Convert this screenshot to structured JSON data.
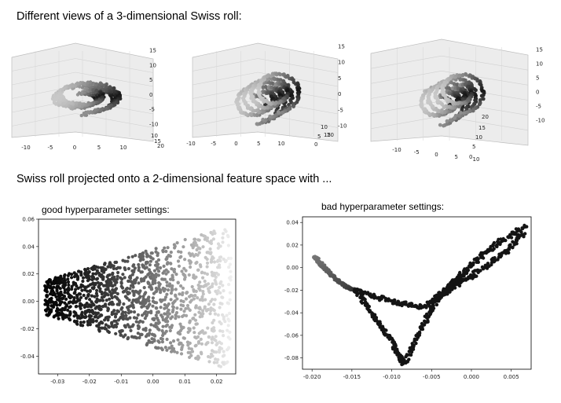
{
  "heading_3d": "Different views of a 3-dimensional Swiss roll:",
  "heading_2d": "Swiss roll projected onto a 2-dimensional feature space with ...",
  "chart_data": [
    {
      "type": "scatter",
      "title": "",
      "view": 1,
      "x_ticks": [
        "-10",
        "-5",
        "0",
        "5",
        "10"
      ],
      "y_ticks": [
        "10",
        "15",
        "20"
      ],
      "z_ticks": [
        "15",
        "10",
        "5",
        "0",
        "-5",
        "-10"
      ],
      "zlim": [
        -12,
        15
      ],
      "grid": true
    },
    {
      "type": "scatter",
      "title": "",
      "view": 2,
      "x_ticks": [
        "-10",
        "-5",
        "0",
        "5",
        "10"
      ],
      "y_ticks": [
        "0",
        "5",
        "10",
        "15",
        "20"
      ],
      "z_ticks": [
        "15",
        "10",
        "5",
        "0",
        "-5",
        "-10"
      ],
      "zlim": [
        -12,
        15
      ],
      "grid": true
    },
    {
      "type": "scatter",
      "title": "",
      "view": 3,
      "x_ticks": [
        "-10",
        "-5",
        "0",
        "5",
        "10"
      ],
      "y_ticks": [
        "0",
        "5",
        "10",
        "15",
        "20"
      ],
      "z_ticks": [
        "15",
        "10",
        "5",
        "0",
        "-5",
        "-10"
      ],
      "zlim": [
        -12,
        15
      ],
      "grid": true
    },
    {
      "type": "scatter",
      "title": "good hyperparameter settings:",
      "xlim": [
        -0.036,
        0.026
      ],
      "ylim": [
        -0.053,
        0.06
      ],
      "x_ticks": [
        "-0.03",
        "-0.02",
        "-0.01",
        "0.00",
        "0.01",
        "0.02"
      ],
      "y_ticks": [
        "0.06",
        "0.04",
        "0.02",
        "0.00",
        "-0.02",
        "-0.04"
      ],
      "x_tick_values": [
        -0.03,
        -0.02,
        -0.01,
        0.0,
        0.01,
        0.02
      ],
      "y_tick_values": [
        0.06,
        0.04,
        0.02,
        0.0,
        -0.02,
        -0.04
      ],
      "band": {
        "x_start": -0.034,
        "x_end": 0.0245,
        "left_top": 0.015,
        "left_bottom": -0.01,
        "right_top": 0.055,
        "right_bottom": -0.05
      }
    },
    {
      "type": "scatter",
      "title": "bad hyperparameter settings:",
      "xlim": [
        -0.0212,
        0.0075
      ],
      "ylim": [
        -0.09,
        0.045
      ],
      "x_ticks": [
        "-0.020",
        "-0.015",
        "-0.010",
        "-0.005",
        "0.000",
        "0.005"
      ],
      "y_ticks": [
        "0.04",
        "0.02",
        "0.00",
        "-0.02",
        "-0.04",
        "-0.06",
        "-0.08"
      ],
      "x_tick_values": [
        -0.02,
        -0.015,
        -0.01,
        -0.005,
        0.0,
        0.005
      ],
      "y_tick_values": [
        0.04,
        0.02,
        0.0,
        -0.02,
        -0.04,
        -0.06,
        -0.08
      ],
      "series": [
        {
          "x": [
            -0.0197,
            -0.0185,
            -0.017,
            -0.0155,
            -0.0145
          ],
          "y": [
            0.01,
            0.0,
            -0.01,
            -0.018,
            -0.02
          ]
        },
        {
          "x": [
            -0.0145,
            -0.012,
            -0.01,
            -0.0085
          ],
          "y": [
            -0.02,
            -0.045,
            -0.065,
            -0.086
          ]
        },
        {
          "x": [
            -0.0085,
            -0.006,
            -0.004,
            -0.002,
            0.0,
            0.003,
            0.007
          ],
          "y": [
            -0.086,
            -0.05,
            -0.025,
            -0.012,
            0.002,
            0.02,
            0.038
          ]
        },
        {
          "x": [
            -0.0145,
            -0.01,
            -0.006,
            -0.003,
            0.0,
            0.004,
            0.0065
          ],
          "y": [
            -0.02,
            -0.03,
            -0.035,
            -0.02,
            -0.008,
            0.012,
            0.03
          ]
        }
      ]
    }
  ]
}
